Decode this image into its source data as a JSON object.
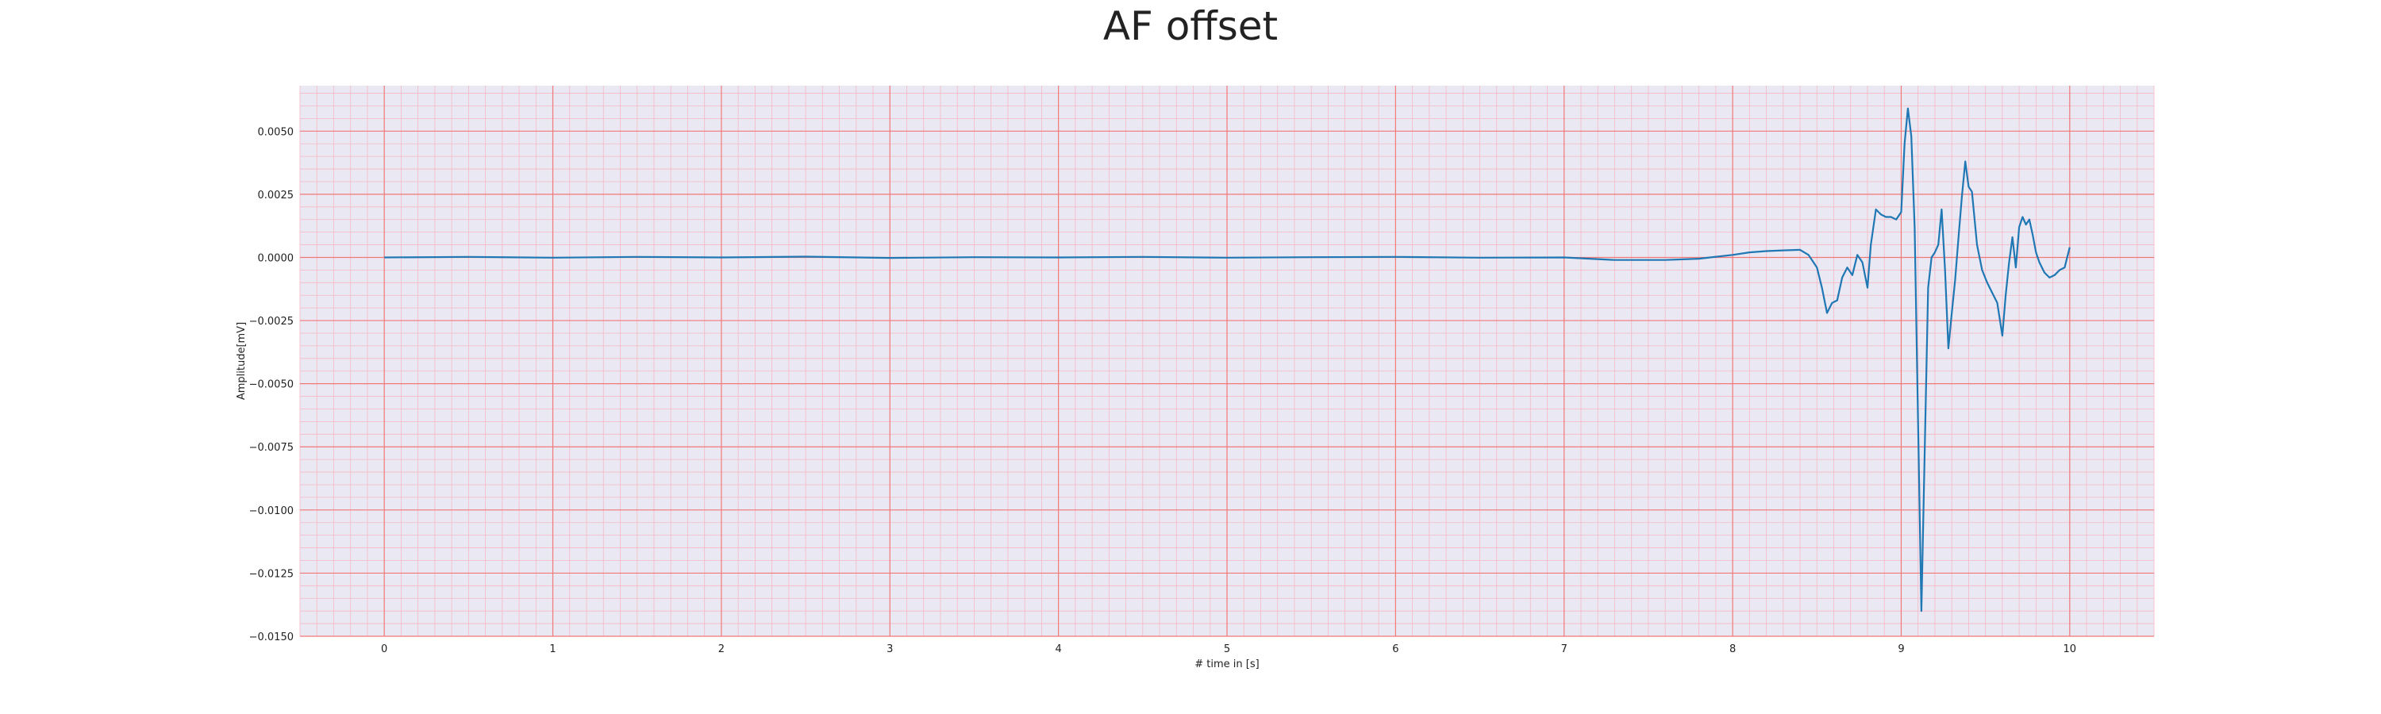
{
  "chart_data": {
    "type": "line",
    "title": "AF offset",
    "xlabel": "# time in [s]",
    "ylabel": "Amplitude[mV]",
    "xlim": [
      -0.5,
      10.5
    ],
    "ylim": [
      -0.015,
      0.0068
    ],
    "xticks": [
      0,
      1,
      2,
      3,
      4,
      5,
      6,
      7,
      8,
      9,
      10
    ],
    "xtick_labels": [
      "0",
      "1",
      "2",
      "3",
      "4",
      "5",
      "6",
      "7",
      "8",
      "9",
      "10"
    ],
    "yticks": [
      -0.015,
      -0.0125,
      -0.01,
      -0.0075,
      -0.005,
      -0.0025,
      0.0,
      0.0025,
      0.005
    ],
    "ytick_labels": [
      "−0.0150",
      "−0.0125",
      "−0.0100",
      "−0.0075",
      "−0.0050",
      "−0.0025",
      "0.0000",
      "0.0025",
      "0.0050"
    ],
    "grid": true,
    "colors": {
      "background": "#eae8f2",
      "major_grid": "#f07878",
      "minor_grid": "#f6b8c4",
      "line": "#1f77b4"
    },
    "series": [
      {
        "x": [
          0,
          0.5,
          1,
          1.5,
          2,
          2.5,
          3,
          3.5,
          4,
          4.5,
          5,
          5.5,
          6,
          6.5,
          7,
          7.3,
          7.6,
          7.8,
          8.0,
          8.1,
          8.2,
          8.3,
          8.4,
          8.45,
          8.5,
          8.53,
          8.56,
          8.59,
          8.62,
          8.65,
          8.68,
          8.71,
          8.74,
          8.77,
          8.8,
          8.82,
          8.85,
          8.88,
          8.91,
          8.94,
          8.97,
          9.0,
          9.02,
          9.04,
          9.06,
          9.08,
          9.1,
          9.12,
          9.14,
          9.16,
          9.18,
          9.2,
          9.22,
          9.24,
          9.26,
          9.28,
          9.3,
          9.32,
          9.34,
          9.36,
          9.38,
          9.4,
          9.42,
          9.45,
          9.48,
          9.51,
          9.54,
          9.57,
          9.6,
          9.62,
          9.64,
          9.66,
          9.68,
          9.7,
          9.72,
          9.74,
          9.76,
          9.78,
          9.8,
          9.82,
          9.85,
          9.88,
          9.91,
          9.94,
          9.97,
          10.0
        ],
        "y": [
          0.0,
          2e-05,
          -1e-05,
          2e-05,
          0.0,
          3e-05,
          -2e-05,
          1e-05,
          0.0,
          2e-05,
          -1e-05,
          1e-05,
          2e-05,
          -1e-05,
          0.0,
          -0.0001,
          -0.0001,
          -5e-05,
          0.0001,
          0.0002,
          0.00025,
          0.00028,
          0.0003,
          0.0001,
          -0.0004,
          -0.0012,
          -0.0022,
          -0.0018,
          -0.0017,
          -0.0008,
          -0.0004,
          -0.0007,
          0.0001,
          -0.0002,
          -0.0012,
          0.0005,
          0.0019,
          0.0017,
          0.0016,
          0.0016,
          0.0015,
          0.0018,
          0.0045,
          0.0059,
          0.0048,
          0.0012,
          -0.0065,
          -0.014,
          -0.0075,
          -0.0012,
          0.0,
          0.0002,
          0.0005,
          0.0019,
          -0.0005,
          -0.0036,
          -0.0022,
          -0.0009,
          0.0008,
          0.0024,
          0.0038,
          0.0028,
          0.0026,
          0.0005,
          -0.0005,
          -0.001,
          -0.0014,
          -0.0018,
          -0.0031,
          -0.0015,
          -0.0002,
          0.0008,
          -0.0004,
          0.0012,
          0.0016,
          0.0013,
          0.0015,
          0.0009,
          0.0002,
          -0.0002,
          -0.0006,
          -0.0008,
          -0.0007,
          -0.0005,
          -0.0004,
          0.0004
        ]
      }
    ]
  }
}
